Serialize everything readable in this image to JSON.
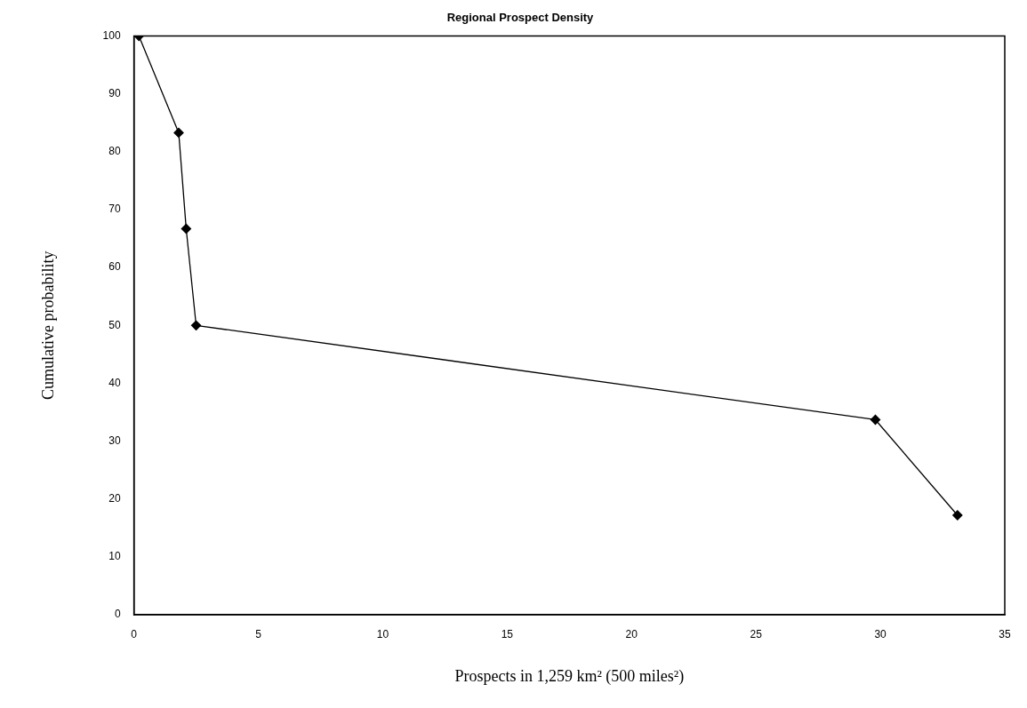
{
  "chart_data": {
    "type": "line",
    "title": "Regional Prospect Density",
    "xlabel": "Prospects in 1,259 km² (500 miles²)",
    "ylabel": "Cumulative probability",
    "x": [
      0.2,
      1.8,
      2.1,
      2.5,
      29.8,
      33.1
    ],
    "series": [
      {
        "color": "#000000",
        "values": [
          100,
          83.3,
          66.7,
          50,
          33.7,
          17.2
        ]
      }
    ],
    "xlim": [
      0,
      35
    ],
    "xticks": [
      0,
      5,
      10,
      15,
      20,
      25,
      30,
      35
    ],
    "ylim": [
      0,
      100
    ],
    "yticks": [
      0,
      10,
      20,
      30,
      40,
      50,
      60,
      70,
      80,
      90,
      100
    ],
    "grid": false,
    "legend": false,
    "marker": "diamond",
    "line_style": "solid"
  }
}
